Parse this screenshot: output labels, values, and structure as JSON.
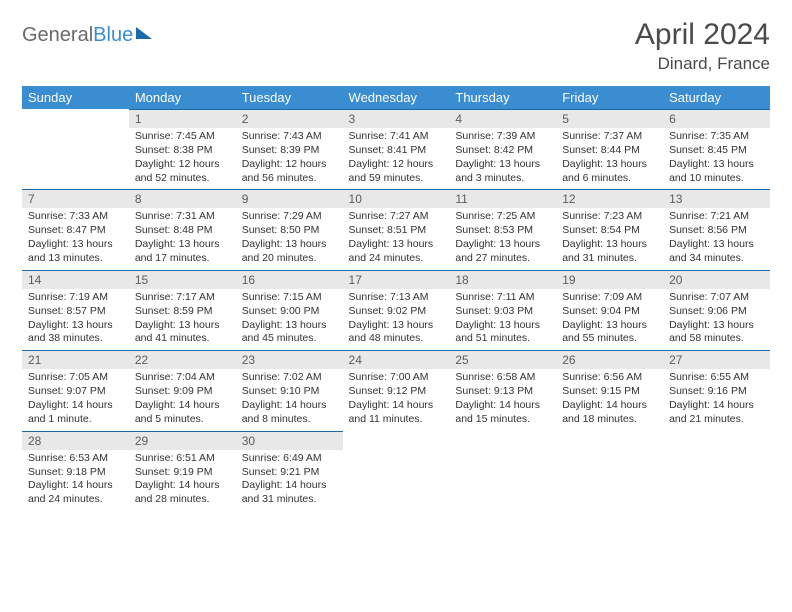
{
  "logo": {
    "part1": "General",
    "part2": "Blue"
  },
  "title": "April 2024",
  "location": "Dinard, France",
  "weekdays": [
    "Sunday",
    "Monday",
    "Tuesday",
    "Wednesday",
    "Thursday",
    "Friday",
    "Saturday"
  ],
  "colors": {
    "header_bg": "#3a8dd0",
    "header_text": "#ffffff",
    "daynum_bg": "#e8e8e8",
    "daynum_text": "#5c5c5c",
    "rule": "#1c69a8",
    "body_text": "#333333",
    "title_text": "#4a4a4a",
    "logo_gray": "#6a6a6a",
    "logo_blue": "#3a8dd0"
  },
  "typography": {
    "title_fontsize": 30,
    "location_fontsize": 17,
    "weekday_fontsize": 13,
    "daynum_fontsize": 12,
    "body_fontsize": 10.5
  },
  "grid": [
    [
      {
        "n": "",
        "sr": "",
        "ss": "",
        "dl": ""
      },
      {
        "n": "1",
        "sr": "Sunrise: 7:45 AM",
        "ss": "Sunset: 8:38 PM",
        "dl": "Daylight: 12 hours and 52 minutes."
      },
      {
        "n": "2",
        "sr": "Sunrise: 7:43 AM",
        "ss": "Sunset: 8:39 PM",
        "dl": "Daylight: 12 hours and 56 minutes."
      },
      {
        "n": "3",
        "sr": "Sunrise: 7:41 AM",
        "ss": "Sunset: 8:41 PM",
        "dl": "Daylight: 12 hours and 59 minutes."
      },
      {
        "n": "4",
        "sr": "Sunrise: 7:39 AM",
        "ss": "Sunset: 8:42 PM",
        "dl": "Daylight: 13 hours and 3 minutes."
      },
      {
        "n": "5",
        "sr": "Sunrise: 7:37 AM",
        "ss": "Sunset: 8:44 PM",
        "dl": "Daylight: 13 hours and 6 minutes."
      },
      {
        "n": "6",
        "sr": "Sunrise: 7:35 AM",
        "ss": "Sunset: 8:45 PM",
        "dl": "Daylight: 13 hours and 10 minutes."
      }
    ],
    [
      {
        "n": "7",
        "sr": "Sunrise: 7:33 AM",
        "ss": "Sunset: 8:47 PM",
        "dl": "Daylight: 13 hours and 13 minutes."
      },
      {
        "n": "8",
        "sr": "Sunrise: 7:31 AM",
        "ss": "Sunset: 8:48 PM",
        "dl": "Daylight: 13 hours and 17 minutes."
      },
      {
        "n": "9",
        "sr": "Sunrise: 7:29 AM",
        "ss": "Sunset: 8:50 PM",
        "dl": "Daylight: 13 hours and 20 minutes."
      },
      {
        "n": "10",
        "sr": "Sunrise: 7:27 AM",
        "ss": "Sunset: 8:51 PM",
        "dl": "Daylight: 13 hours and 24 minutes."
      },
      {
        "n": "11",
        "sr": "Sunrise: 7:25 AM",
        "ss": "Sunset: 8:53 PM",
        "dl": "Daylight: 13 hours and 27 minutes."
      },
      {
        "n": "12",
        "sr": "Sunrise: 7:23 AM",
        "ss": "Sunset: 8:54 PM",
        "dl": "Daylight: 13 hours and 31 minutes."
      },
      {
        "n": "13",
        "sr": "Sunrise: 7:21 AM",
        "ss": "Sunset: 8:56 PM",
        "dl": "Daylight: 13 hours and 34 minutes."
      }
    ],
    [
      {
        "n": "14",
        "sr": "Sunrise: 7:19 AM",
        "ss": "Sunset: 8:57 PM",
        "dl": "Daylight: 13 hours and 38 minutes."
      },
      {
        "n": "15",
        "sr": "Sunrise: 7:17 AM",
        "ss": "Sunset: 8:59 PM",
        "dl": "Daylight: 13 hours and 41 minutes."
      },
      {
        "n": "16",
        "sr": "Sunrise: 7:15 AM",
        "ss": "Sunset: 9:00 PM",
        "dl": "Daylight: 13 hours and 45 minutes."
      },
      {
        "n": "17",
        "sr": "Sunrise: 7:13 AM",
        "ss": "Sunset: 9:02 PM",
        "dl": "Daylight: 13 hours and 48 minutes."
      },
      {
        "n": "18",
        "sr": "Sunrise: 7:11 AM",
        "ss": "Sunset: 9:03 PM",
        "dl": "Daylight: 13 hours and 51 minutes."
      },
      {
        "n": "19",
        "sr": "Sunrise: 7:09 AM",
        "ss": "Sunset: 9:04 PM",
        "dl": "Daylight: 13 hours and 55 minutes."
      },
      {
        "n": "20",
        "sr": "Sunrise: 7:07 AM",
        "ss": "Sunset: 9:06 PM",
        "dl": "Daylight: 13 hours and 58 minutes."
      }
    ],
    [
      {
        "n": "21",
        "sr": "Sunrise: 7:05 AM",
        "ss": "Sunset: 9:07 PM",
        "dl": "Daylight: 14 hours and 1 minute."
      },
      {
        "n": "22",
        "sr": "Sunrise: 7:04 AM",
        "ss": "Sunset: 9:09 PM",
        "dl": "Daylight: 14 hours and 5 minutes."
      },
      {
        "n": "23",
        "sr": "Sunrise: 7:02 AM",
        "ss": "Sunset: 9:10 PM",
        "dl": "Daylight: 14 hours and 8 minutes."
      },
      {
        "n": "24",
        "sr": "Sunrise: 7:00 AM",
        "ss": "Sunset: 9:12 PM",
        "dl": "Daylight: 14 hours and 11 minutes."
      },
      {
        "n": "25",
        "sr": "Sunrise: 6:58 AM",
        "ss": "Sunset: 9:13 PM",
        "dl": "Daylight: 14 hours and 15 minutes."
      },
      {
        "n": "26",
        "sr": "Sunrise: 6:56 AM",
        "ss": "Sunset: 9:15 PM",
        "dl": "Daylight: 14 hours and 18 minutes."
      },
      {
        "n": "27",
        "sr": "Sunrise: 6:55 AM",
        "ss": "Sunset: 9:16 PM",
        "dl": "Daylight: 14 hours and 21 minutes."
      }
    ],
    [
      {
        "n": "28",
        "sr": "Sunrise: 6:53 AM",
        "ss": "Sunset: 9:18 PM",
        "dl": "Daylight: 14 hours and 24 minutes."
      },
      {
        "n": "29",
        "sr": "Sunrise: 6:51 AM",
        "ss": "Sunset: 9:19 PM",
        "dl": "Daylight: 14 hours and 28 minutes."
      },
      {
        "n": "30",
        "sr": "Sunrise: 6:49 AM",
        "ss": "Sunset: 9:21 PM",
        "dl": "Daylight: 14 hours and 31 minutes."
      },
      {
        "n": "",
        "sr": "",
        "ss": "",
        "dl": ""
      },
      {
        "n": "",
        "sr": "",
        "ss": "",
        "dl": ""
      },
      {
        "n": "",
        "sr": "",
        "ss": "",
        "dl": ""
      },
      {
        "n": "",
        "sr": "",
        "ss": "",
        "dl": ""
      }
    ]
  ]
}
